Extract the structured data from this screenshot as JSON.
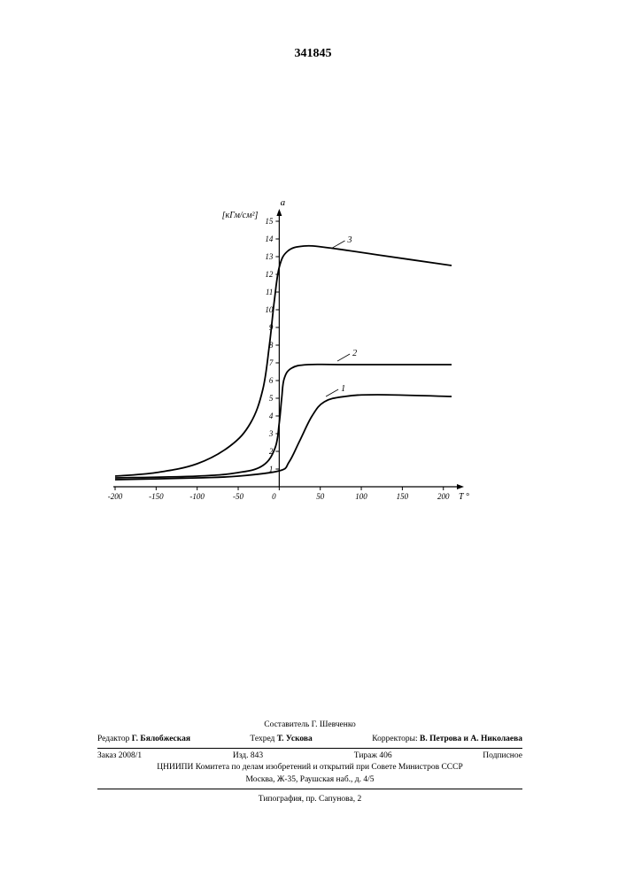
{
  "page_number": "341845",
  "chart": {
    "type": "line",
    "background_color": "#ffffff",
    "line_color": "#000000",
    "axis_color": "#000000",
    "text_color": "#000000",
    "line_width": 1.8,
    "xlabel": "T °C",
    "ylabel_top": "a",
    "ylabel_unit": "[кГм/см²]",
    "label_fontsize": 11,
    "tick_fontsize": 9,
    "xlim": [
      -200,
      210
    ],
    "ylim": [
      0,
      15
    ],
    "xticks": [
      -200,
      -150,
      -100,
      -50,
      0,
      50,
      100,
      150,
      200
    ],
    "yticks": [
      1,
      2,
      3,
      4,
      5,
      6,
      7,
      8,
      9,
      10,
      11,
      12,
      13,
      14,
      15
    ],
    "series": [
      {
        "name": "1",
        "label_x": 72,
        "label_y": 5.2,
        "points": [
          {
            "x": -200,
            "y": 0.4
          },
          {
            "x": -100,
            "y": 0.5
          },
          {
            "x": -50,
            "y": 0.6
          },
          {
            "x": 0,
            "y": 0.9
          },
          {
            "x": 12,
            "y": 1.4
          },
          {
            "x": 25,
            "y": 2.6
          },
          {
            "x": 40,
            "y": 4.0
          },
          {
            "x": 55,
            "y": 4.8
          },
          {
            "x": 80,
            "y": 5.1
          },
          {
            "x": 120,
            "y": 5.2
          },
          {
            "x": 210,
            "y": 5.1
          }
        ]
      },
      {
        "name": "2",
        "label_x": 86,
        "label_y": 7.2,
        "points": [
          {
            "x": -200,
            "y": 0.5
          },
          {
            "x": -100,
            "y": 0.6
          },
          {
            "x": -50,
            "y": 0.8
          },
          {
            "x": -20,
            "y": 1.2
          },
          {
            "x": -5,
            "y": 2.2
          },
          {
            "x": 0,
            "y": 3.6
          },
          {
            "x": 3,
            "y": 5.0
          },
          {
            "x": 6,
            "y": 6.1
          },
          {
            "x": 15,
            "y": 6.7
          },
          {
            "x": 35,
            "y": 6.9
          },
          {
            "x": 80,
            "y": 6.9
          },
          {
            "x": 210,
            "y": 6.9
          }
        ]
      },
      {
        "name": "3",
        "label_x": 80,
        "label_y": 13.6,
        "points": [
          {
            "x": -200,
            "y": 0.6
          },
          {
            "x": -150,
            "y": 0.8
          },
          {
            "x": -100,
            "y": 1.3
          },
          {
            "x": -60,
            "y": 2.3
          },
          {
            "x": -35,
            "y": 3.6
          },
          {
            "x": -20,
            "y": 5.5
          },
          {
            "x": -12,
            "y": 8.0
          },
          {
            "x": -6,
            "y": 10.5
          },
          {
            "x": 0,
            "y": 12.4
          },
          {
            "x": 10,
            "y": 13.3
          },
          {
            "x": 30,
            "y": 13.6
          },
          {
            "x": 60,
            "y": 13.5
          },
          {
            "x": 120,
            "y": 13.1
          },
          {
            "x": 210,
            "y": 12.5
          }
        ]
      }
    ]
  },
  "footer": {
    "composer": "Составитель Г. Шевченко",
    "editor_label": "Редактор",
    "editor": "Г. Бялобжеская",
    "techred_label": "Техред",
    "techred": "Т. Ускова",
    "correctors_label": "Корректоры:",
    "correctors": "В. Петрова и А. Николаева",
    "order": "Заказ 2008/1",
    "edition": "Изд. 843",
    "tirage": "Тираж 406",
    "subscription": "Подписное",
    "org_line1": "ЦНИИПИ Комитета по делам изобретений и открытий при Совете Министров СССР",
    "org_line2": "Москва, Ж-35, Раушская наб., д. 4/5",
    "printshop": "Типография, пр. Сапунова, 2"
  }
}
